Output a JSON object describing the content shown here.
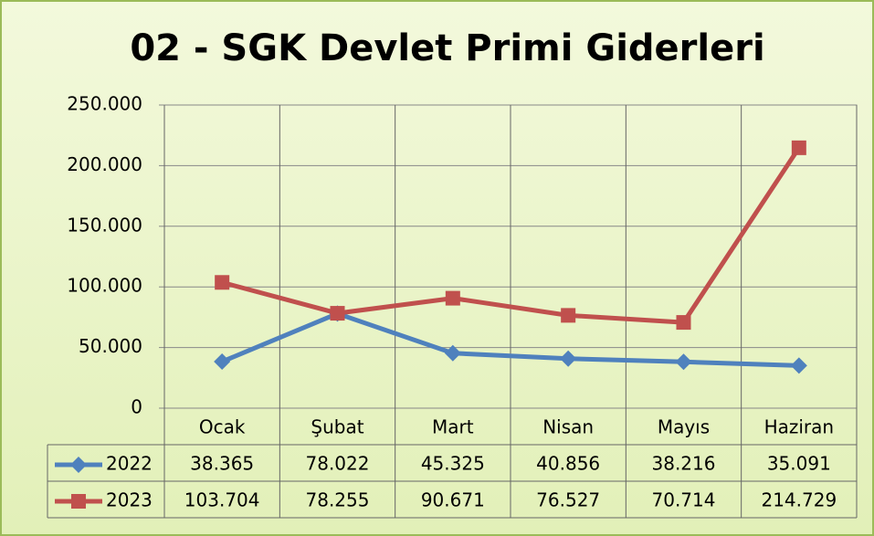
{
  "chart_data": {
    "type": "line",
    "title": "02 - SGK Devlet Primi Giderleri",
    "categories": [
      "Ocak",
      "Şubat",
      "Mart",
      "Nisan",
      "Mayıs",
      "Haziran"
    ],
    "series": [
      {
        "name": "2022",
        "color": "#4f81bd",
        "marker": "diamond",
        "values": [
          38365,
          78022,
          45325,
          40856,
          38216,
          35091
        ],
        "value_labels": [
          "38.365",
          "78.022",
          "45.325",
          "40.856",
          "38.216",
          "35.091"
        ]
      },
      {
        "name": "2023",
        "color": "#c0504d",
        "marker": "square",
        "values": [
          103704,
          78255,
          90671,
          76527,
          70714,
          214729
        ],
        "value_labels": [
          "103.704",
          "78.255",
          "90.671",
          "76.527",
          "70.714",
          "214.729"
        ]
      }
    ],
    "ylim": [
      0,
      250000
    ],
    "yticks": [
      0,
      {
        "value": 50000,
        "label": "50.000"
      },
      {
        "value": 100000,
        "label": "100.000"
      },
      {
        "value": 150000,
        "label": "150.000"
      },
      {
        "value": 200000,
        "label": "200.000"
      },
      {
        "value": 250000,
        "label": "250.000"
      }
    ],
    "grid": true,
    "data_table": true
  }
}
